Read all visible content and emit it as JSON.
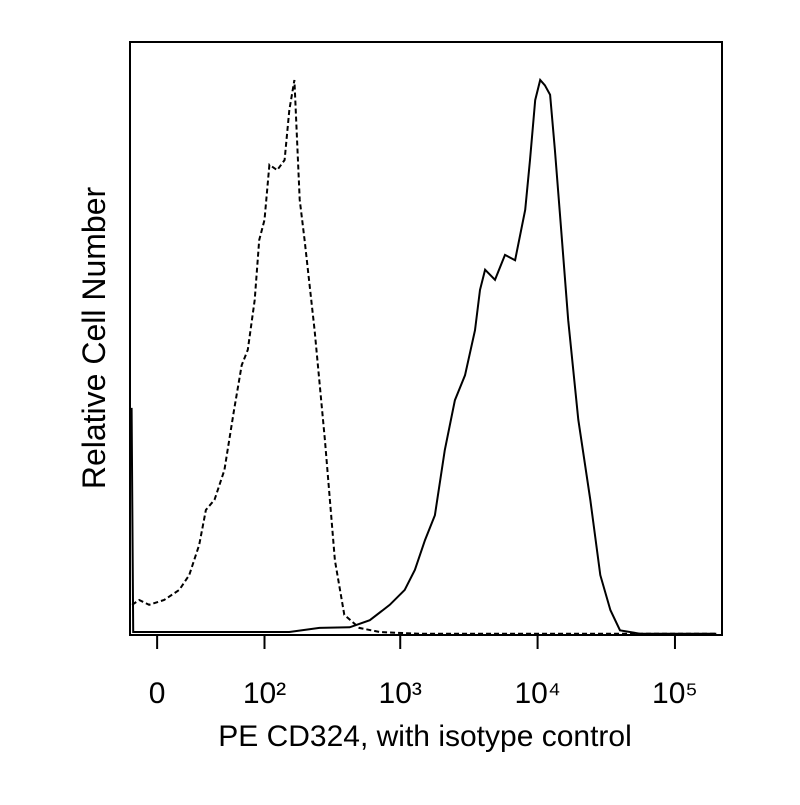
{
  "chart_data": {
    "type": "line",
    "x_label": "PE CD324, with isotype control",
    "y_label": "Relative Cell Number",
    "xscale": "biexponential",
    "xlim": [
      -16,
      220000
    ],
    "ylim": [
      0,
      100
    ],
    "xticks": [
      0,
      {
        "value": 100,
        "label": "10²"
      },
      {
        "value": 1000,
        "label": "10³"
      },
      {
        "value": 10000,
        "label": "10⁴"
      },
      {
        "value": 100000,
        "label": "10⁵"
      }
    ],
    "series": [
      {
        "color": "#000000",
        "line_style": "dashed",
        "x": [
          -14.7,
          -10.4,
          -4.6,
          4.0,
          12.9,
          19.2,
          26,
          31,
          38,
          47,
          57,
          66,
          74,
          84,
          91,
          100,
          109,
          125,
          142,
          154,
          168,
          184,
          200,
          237,
          282,
          334,
          391,
          503,
          707,
          1385,
          2730,
          200000
        ],
        "values": [
          5.1,
          5.9,
          5.1,
          5.9,
          7.6,
          10.1,
          15.2,
          21.1,
          22.8,
          27.8,
          37.9,
          45.5,
          48.1,
          56.5,
          66.6,
          70.0,
          79.3,
          78.4,
          80.1,
          88.5,
          93.6,
          73.4,
          66.6,
          51.4,
          32.9,
          12.6,
          3.4,
          1.2,
          0.5,
          0.2,
          0.2,
          0.2
        ]
      },
      {
        "color": "#000000",
        "line_style": "solid",
        "x": [
          -15,
          -14,
          154,
          257,
          428,
          600,
          839,
          1078,
          1279,
          1514,
          1789,
          2110,
          2500,
          2960,
          3500,
          3810,
          4150,
          4900,
          5790,
          6860,
          8130,
          8810,
          9610,
          10440,
          11300,
          12340,
          13360,
          14650,
          16700,
          19790,
          24200,
          28600,
          33900,
          39800,
          56100,
          200000
        ],
        "values": [
          38.3,
          0.5,
          0.5,
          1.2,
          1.3,
          2.5,
          5.1,
          7.6,
          11.0,
          16.0,
          20.2,
          31.2,
          39.6,
          43.8,
          51.4,
          58.2,
          61.6,
          59.9,
          64.1,
          63.2,
          71.7,
          80.1,
          90.2,
          93.6,
          92.7,
          91.1,
          81.8,
          70.0,
          53.1,
          36.3,
          22.8,
          10.1,
          4.2,
          0.8,
          0.2,
          0.2
        ]
      }
    ]
  }
}
